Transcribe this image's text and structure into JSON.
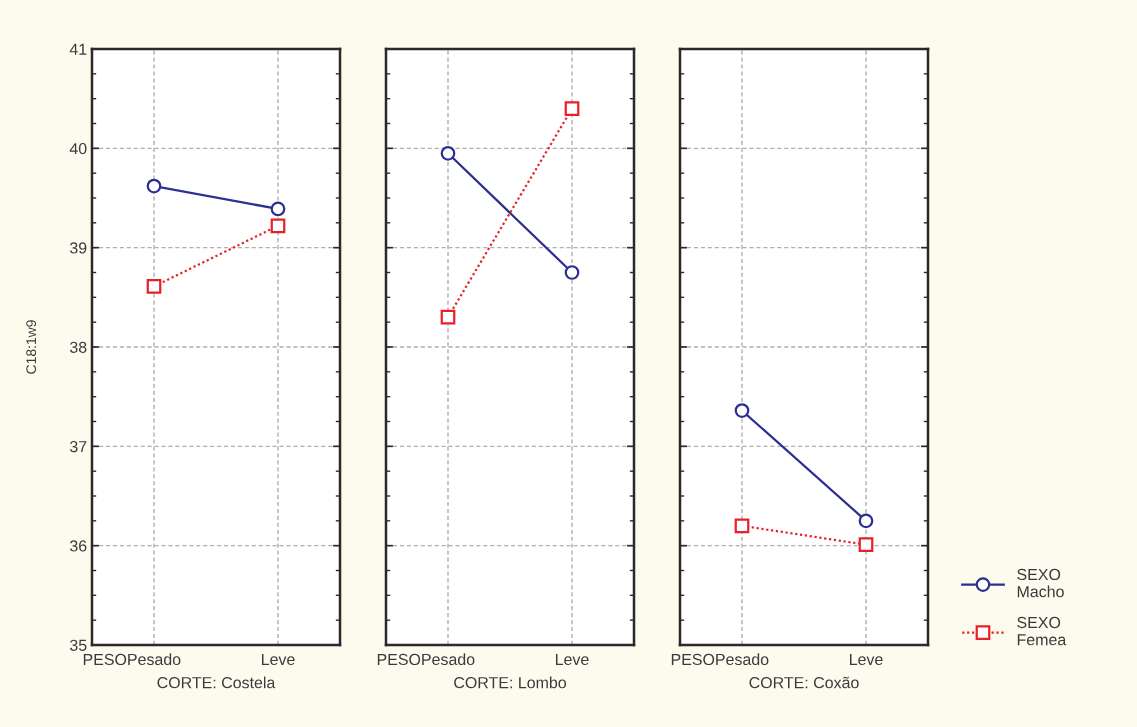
{
  "chart_data": [
    {
      "type": "line",
      "categories": [
        "Pesado",
        "Leve"
      ],
      "xlabel": "CORTE: Costela",
      "ylabel": "C18:1w9",
      "annotations": [
        "PESO"
      ],
      "ylim": [
        35,
        41
      ],
      "yticks": [
        35,
        36,
        37,
        38,
        39,
        40,
        41
      ],
      "grid": true,
      "series": [
        {
          "color": "#2b2f91",
          "values": [
            39.62,
            39.39
          ],
          "marker": "circle",
          "line_style": "solid"
        },
        {
          "color": "#e8202a",
          "values": [
            38.61,
            39.22
          ],
          "marker": "square",
          "line_style": "dotted"
        }
      ]
    },
    {
      "type": "line",
      "categories": [
        "Pesado",
        "Leve"
      ],
      "xlabel": "CORTE: Lombo",
      "annotations": [
        "PESO"
      ],
      "ylim": [
        35,
        41
      ],
      "yticks": [
        35,
        36,
        37,
        38,
        39,
        40,
        41
      ],
      "grid": true,
      "tick_labels": "x",
      "series": [
        {
          "color": "#2b2f91",
          "values": [
            39.95,
            38.75
          ],
          "marker": "circle",
          "line_style": "solid"
        },
        {
          "color": "#e8202a",
          "values": [
            38.3,
            40.4
          ],
          "marker": "square",
          "line_style": "dotted"
        }
      ]
    },
    {
      "type": "line",
      "categories": [
        "Pesado",
        "Leve"
      ],
      "xlabel": "CORTE: Coxão",
      "annotations": [
        "PESO"
      ],
      "ylim": [
        35,
        41
      ],
      "yticks": [
        35,
        36,
        37,
        38,
        39,
        40,
        41
      ],
      "grid": true,
      "tick_labels": "x",
      "legend": "right",
      "series": [
        {
          "name": "SEXO\nMacho",
          "color": "#2b2f91",
          "values": [
            37.36,
            36.25
          ],
          "marker": "circle",
          "line_style": "solid"
        },
        {
          "name": "SEXO\nFemea",
          "color": "#e8202a",
          "values": [
            36.2,
            36.01
          ],
          "marker": "square",
          "line_style": "dotted"
        }
      ]
    }
  ]
}
